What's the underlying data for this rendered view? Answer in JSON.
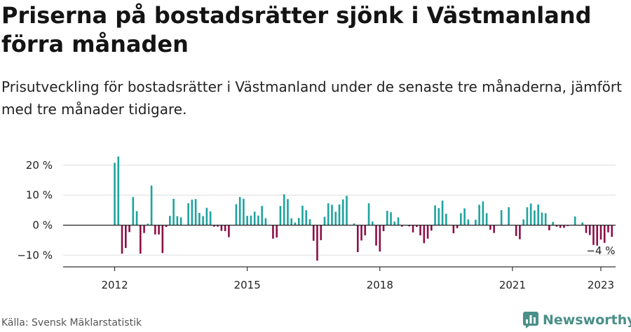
{
  "title": "Priserna på bostadsrätter sjönk i Västmanland förra månaden",
  "subtitle": "Prisutveckling för bostadsrätter i Västmanland under de senaste tre månaderna, jämfört med tre månader tidigare.",
  "source": "Källa: Svensk Mäklarstatistik",
  "brand": {
    "name": "Newsworthy",
    "icon": "newsworthy-logo-icon",
    "color": "#4a8f89"
  },
  "chart_data": {
    "type": "bar",
    "start": "2012-01",
    "values": [
      20.8,
      22.9,
      -9.5,
      -7.6,
      -2.3,
      9.4,
      4.7,
      -9.5,
      -2.6,
      0.5,
      13.2,
      -3.1,
      -3.1,
      -9.3,
      -0.6,
      3.1,
      8.8,
      3.0,
      2.6,
      0.0,
      7.3,
      8.5,
      8.7,
      4.1,
      3.0,
      5.8,
      4.6,
      -0.5,
      -0.5,
      -1.9,
      -2.0,
      -4.0,
      0.0,
      7.0,
      9.4,
      8.8,
      3.1,
      3.2,
      4.5,
      3.2,
      6.4,
      2.3,
      0.0,
      -4.5,
      -4.1,
      6.4,
      10.3,
      8.7,
      2.3,
      0.9,
      2.4,
      6.5,
      5.0,
      2.0,
      -5.2,
      -11.8,
      -5.0,
      2.8,
      7.3,
      6.8,
      4.5,
      6.9,
      8.6,
      9.8,
      0.0,
      0.6,
      -9.0,
      -5.1,
      -3.4,
      7.3,
      1.2,
      -6.8,
      -8.8,
      -2.0,
      4.8,
      4.3,
      1.2,
      2.6,
      -0.5,
      0.0,
      -0.4,
      -2.4,
      -0.6,
      -3.4,
      -6.0,
      -4.5,
      -1.8,
      6.6,
      5.7,
      8.2,
      3.8,
      0.0,
      -2.7,
      -1.0,
      4.0,
      5.6,
      1.9,
      0.0,
      1.8,
      6.8,
      7.9,
      4.0,
      -1.5,
      -2.6,
      0.0,
      5.0,
      0.0,
      6.0,
      0.0,
      -3.6,
      -4.7,
      1.9,
      6.0,
      7.2,
      4.9,
      6.9,
      4.2,
      4.0,
      -1.7,
      1.1,
      -0.5,
      -0.9,
      -0.9,
      -0.3,
      0.0,
      2.9,
      0.0,
      0.9,
      -2.6,
      -3.3,
      -6.6,
      -6.8,
      -4.8,
      -5.9,
      -2.4,
      -3.9
    ],
    "positive_color": "#1ea3a0",
    "negative_color": "#8d0f47",
    "y_ticks": [
      {
        "value": 20,
        "label": "20 %"
      },
      {
        "value": 10,
        "label": "10 %"
      },
      {
        "value": 0,
        "label": "0 %"
      },
      {
        "value": -10,
        "label": "−10 %"
      }
    ],
    "x_ticks": [
      {
        "value": "2012-01",
        "label": "2012"
      },
      {
        "value": "2015-01",
        "label": "2015"
      },
      {
        "value": "2018-01",
        "label": "2018"
      },
      {
        "value": "2021-01",
        "label": "2021"
      },
      {
        "value": "2023-01",
        "label": "2023"
      }
    ],
    "x_domain": [
      "2010-11",
      "2023-05"
    ],
    "ylim": [
      -13.9,
      23
    ],
    "grid": true,
    "annotation": {
      "label": "−4 %",
      "at": "2023-01"
    }
  }
}
